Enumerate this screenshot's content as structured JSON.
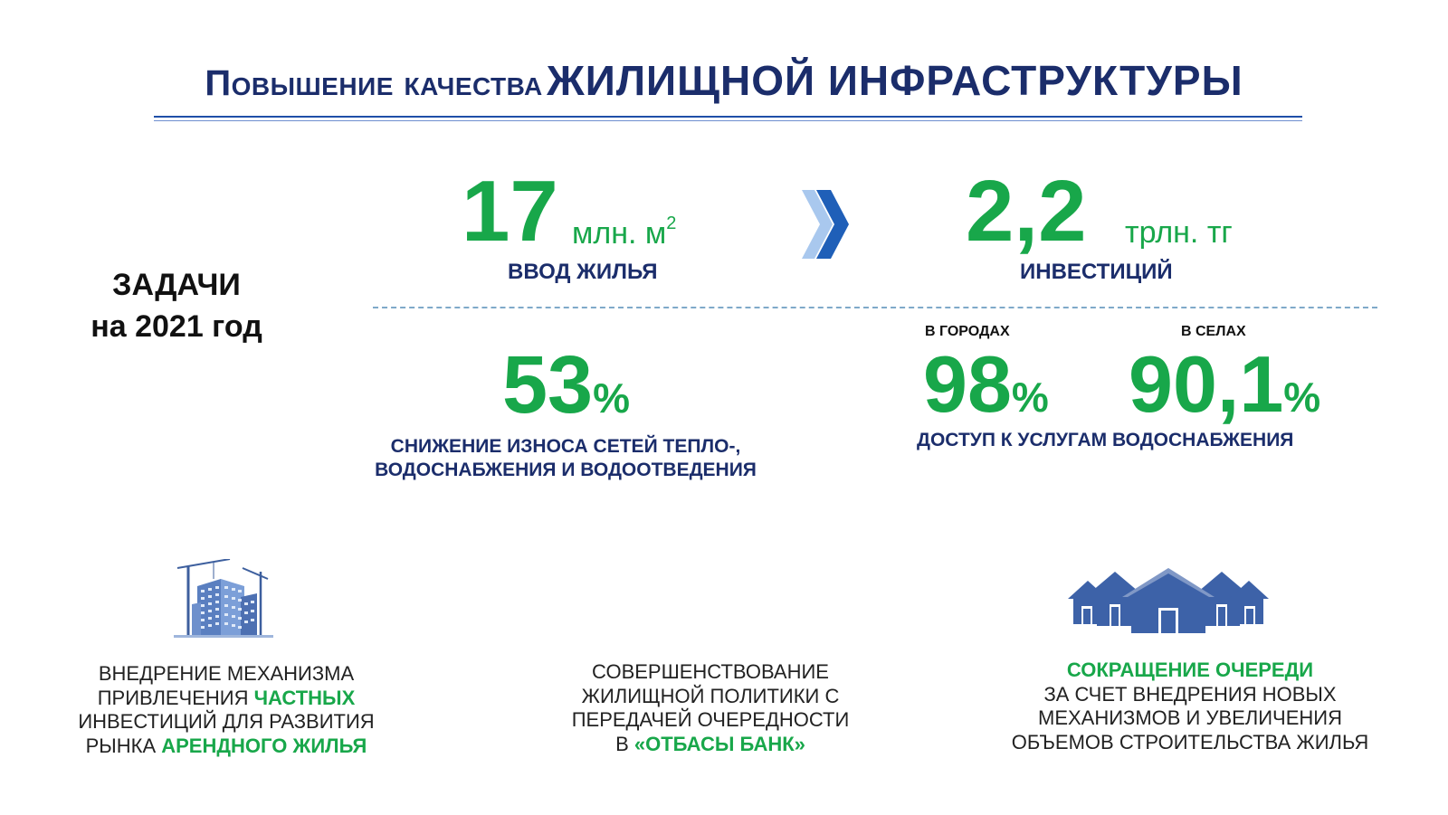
{
  "title": {
    "part1": "Повышение качества",
    "part2": "ЖИЛИЩНОЙ ИНФРАСТРУКТУРЫ"
  },
  "tasks": {
    "line1": "ЗАДАЧИ",
    "line2": "на 2021 год"
  },
  "metrics": {
    "housing": {
      "value": "17",
      "unit": "млн. м",
      "unit_sup": "2",
      "label": "ВВОД ЖИЛЬЯ"
    },
    "investment": {
      "value": "2,2",
      "unit": "трлн. тг",
      "label": "ИНВЕСТИЦИЙ"
    },
    "wear": {
      "value": "53",
      "unit": "%",
      "label_line1": "СНИЖЕНИЕ ИЗНОСА СЕТЕЙ ТЕПЛО-,",
      "label_line2": "ВОДОСНАБЖЕНИЯ И ВОДООТВЕДЕНИЯ"
    },
    "water": {
      "city_caption": "В ГОРОДАХ",
      "city_value": "98",
      "village_caption": "В СЕЛАХ",
      "village_value": "90,1",
      "unit": "%",
      "label": "ДОСТУП К УСЛУГАМ ВОДОСНАБЖЕНИЯ"
    }
  },
  "bottom": {
    "block1": {
      "l1": "ВНЕДРЕНИЕ МЕХАНИЗМА",
      "l2a": "ПРИВЛЕЧЕНИЯ ",
      "l2b": "ЧАСТНЫХ",
      "l3": "ИНВЕСТИЦИЙ ДЛЯ РАЗВИТИЯ",
      "l4a": "РЫНКА ",
      "l4b": "АРЕНДНОГО ЖИЛЬЯ"
    },
    "block2": {
      "l1": "СОВЕРШЕНСТВОВАНИЕ",
      "l2": "ЖИЛИЩНОЙ ПОЛИТИКИ С",
      "l3": "ПЕРЕДАЧЕЙ ОЧЕРЕДНОСТИ",
      "l4a": "В ",
      "l4b": "«ОТБАСЫ БАНК»"
    },
    "block3": {
      "l1": "СОКРАЩЕНИЕ ОЧЕРЕДИ",
      "l2": "ЗА СЧЕТ ВНЕДРЕНИЯ НОВЫХ",
      "l3": "МЕХАНИЗМОВ И УВЕЛИЧЕНИЯ",
      "l4": "ОБЪЕМОВ СТРОИТЕЛЬСТВА ЖИЛЬЯ"
    }
  },
  "icons": {
    "arrow": "double-chevron-right-icon",
    "building": "construction-building-icon",
    "houses": "houses-icon"
  },
  "colors": {
    "navy": "#1b2d6b",
    "green": "#18a74a",
    "accent_blue": "#1f5fb8"
  }
}
